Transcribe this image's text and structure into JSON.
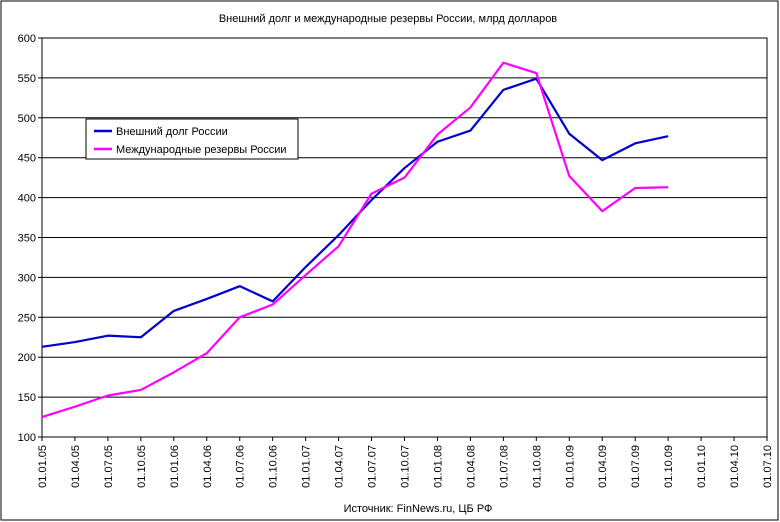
{
  "chart_data": {
    "type": "line",
    "title": "Внешний долг и международные резервы России, млрд долларов",
    "source": "Источник: FinNews.ru, ЦБ РФ",
    "categories": [
      "01.01.05",
      "01.04.05",
      "01.07.05",
      "01.10.05",
      "01.01.06",
      "01.04.06",
      "01.07.06",
      "01.10.06",
      "01.01.07",
      "01.04.07",
      "01.07.07",
      "01.10.07",
      "01.01.08",
      "01.04.08",
      "01.07.08",
      "01.10.08",
      "01.01.09",
      "01.04.09",
      "01.07.09",
      "01.10.09",
      "01.01.10",
      "01.04.10",
      "01.07.10"
    ],
    "ylim": [
      100,
      600
    ],
    "yticks": [
      100,
      150,
      200,
      250,
      300,
      350,
      400,
      450,
      500,
      550,
      600
    ],
    "grid": true,
    "legend_position": "left",
    "series": [
      {
        "name": "Внешний долг России",
        "color": "#0000cc",
        "values": [
          213,
          219,
          227,
          225,
          258,
          273,
          289,
          270,
          313,
          353,
          397,
          437,
          470,
          484,
          535,
          549,
          480,
          447,
          468,
          477,
          null,
          null,
          null
        ]
      },
      {
        "name": "Международные резервы России",
        "color": "#ff00ff",
        "values": [
          125,
          138,
          152,
          159,
          181,
          205,
          250,
          266,
          303,
          339,
          405,
          425,
          479,
          513,
          569,
          556,
          427,
          383,
          412,
          413,
          null,
          null,
          null
        ]
      }
    ]
  }
}
